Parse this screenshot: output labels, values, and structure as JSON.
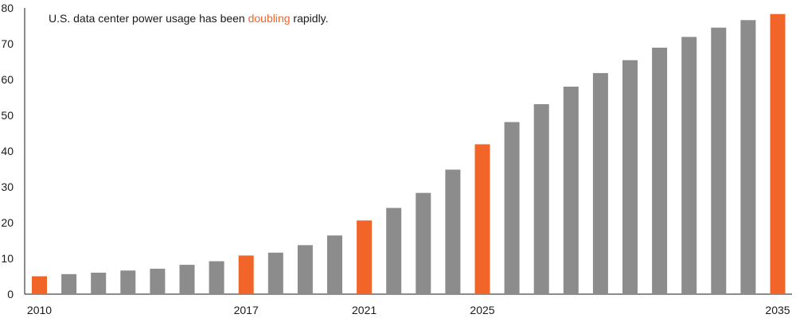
{
  "chart_data": {
    "type": "bar",
    "title_parts": [
      {
        "text": "U.S. data center power usage has been ",
        "highlight": false
      },
      {
        "text": "doubling",
        "highlight": true
      },
      {
        "text": " rapidly.",
        "highlight": false
      }
    ],
    "categories": [
      "2010",
      "2011",
      "2012",
      "2013",
      "2014",
      "2015",
      "2016",
      "2017",
      "2018",
      "2019",
      "2020",
      "2021",
      "2022",
      "2023",
      "2024",
      "2025",
      "2026",
      "2027",
      "2028",
      "2029",
      "2030",
      "2031",
      "2032",
      "2033",
      "2034",
      "2035"
    ],
    "x_tick_labels": {
      "2010": "2010",
      "2017": "2017",
      "2021": "2021",
      "2025": "2025",
      "2035": "2035"
    },
    "values": [
      5.0,
      5.6,
      6.0,
      6.6,
      7.1,
      8.2,
      9.2,
      10.8,
      11.6,
      13.7,
      16.4,
      20.6,
      24.1,
      28.3,
      34.8,
      41.9,
      48.1,
      53.1,
      58.0,
      61.8,
      65.4,
      68.9,
      71.9,
      74.5,
      76.6,
      78.3
    ],
    "highlighted_categories": [
      "2010",
      "2017",
      "2021",
      "2025",
      "2035"
    ],
    "ylim": [
      0,
      80
    ],
    "y_ticks": [
      0,
      10,
      20,
      30,
      40,
      50,
      60,
      70,
      80
    ],
    "xlabel": "",
    "ylabel": "",
    "grid": false,
    "legend": "none",
    "colors": {
      "default_bar": "#8c8c8c",
      "highlight_bar": "#f26529",
      "axis": "#1a1a1a",
      "text": "#1a1a1a",
      "highlight_text": "#f26529"
    }
  }
}
